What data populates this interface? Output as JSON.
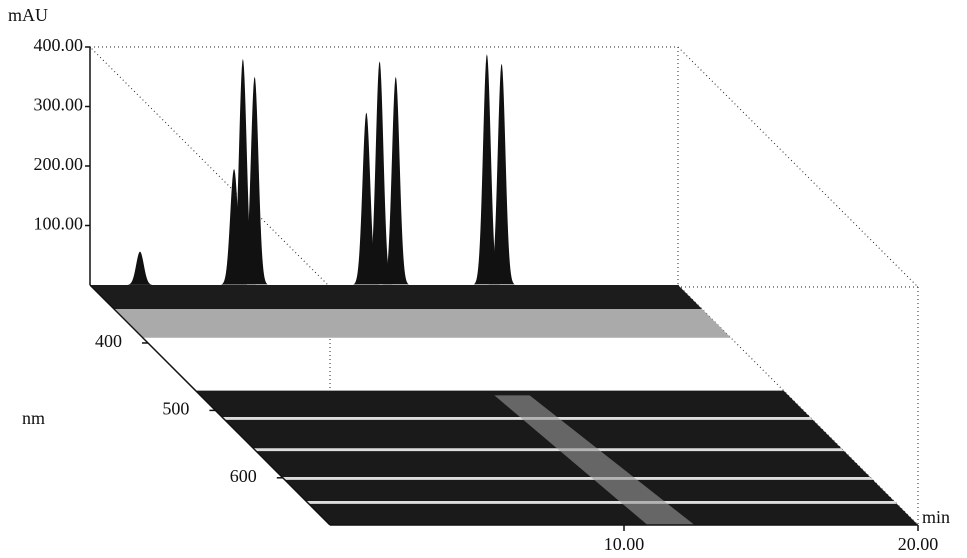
{
  "chart_data": {
    "type": "chromatogram3d",
    "y_label": "mAU",
    "z_label": "nm",
    "x_label": "min",
    "xlim": [
      0,
      20
    ],
    "xticks": [
      {
        "value": 10,
        "label": "10.00"
      },
      {
        "value": 20,
        "label": "20.00"
      }
    ],
    "ylim": [
      0,
      400
    ],
    "yticks": [
      {
        "value": 100,
        "label": "100.00"
      },
      {
        "value": 200,
        "label": "200.00"
      },
      {
        "value": 300,
        "label": "300.00"
      },
      {
        "value": 400,
        "label": "400.00"
      }
    ],
    "zlim": [
      314,
      670
    ],
    "zticks": [
      400,
      500,
      600
    ],
    "peaks": {
      "x": [
        1.7,
        4.9,
        5.2,
        5.6,
        9.4,
        9.85,
        10.4,
        13.5,
        14.0
      ],
      "values": [
        56,
        195,
        380,
        350,
        290,
        376,
        350,
        388,
        372
      ]
    },
    "color": "#111111"
  }
}
